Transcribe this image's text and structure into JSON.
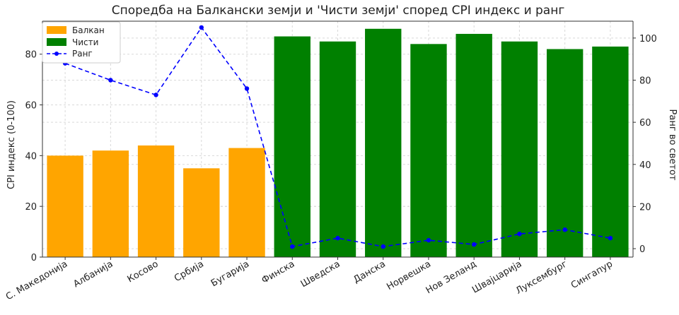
{
  "chart_data": {
    "type": "bar",
    "title": "Споредба на Балкански земји и 'Чисти земји' според CPI индекс и ранг",
    "ylabel_left": "CPI индекс (0-100)",
    "ylabel_right": "Ранг во светот",
    "ylim_left": [
      0,
      93
    ],
    "ylim_right": [
      -4,
      108
    ],
    "yticks_left": [
      0,
      20,
      40,
      60,
      80
    ],
    "yticks_right": [
      0,
      20,
      40,
      60,
      80,
      100
    ],
    "grid": true,
    "legend_position": "top-left",
    "categories": [
      "С. Македонија",
      "Албанија",
      "Косово",
      "Србија",
      "Бугарија",
      "Финска",
      "Шведска",
      "Данска",
      "Норвешка",
      "Нов Зеланд",
      "Швајцарија",
      "Луксембург",
      "Сингапур"
    ],
    "series": [
      {
        "name": "Балкан",
        "kind": "bar",
        "color": "#FFA500",
        "values": [
          40,
          42,
          44,
          35,
          43,
          null,
          null,
          null,
          null,
          null,
          null,
          null,
          null
        ]
      },
      {
        "name": "Чисти",
        "kind": "bar",
        "color": "#008000",
        "values": [
          null,
          null,
          null,
          null,
          null,
          87,
          85,
          90,
          84,
          88,
          85,
          82,
          83
        ]
      },
      {
        "name": "Ранг",
        "kind": "line",
        "axis": "right",
        "color": "#0000FF",
        "style": "dashed",
        "marker": "circle",
        "values": [
          88,
          80,
          73,
          105,
          76,
          1,
          5,
          1,
          4,
          2,
          7,
          9,
          5
        ]
      }
    ]
  }
}
